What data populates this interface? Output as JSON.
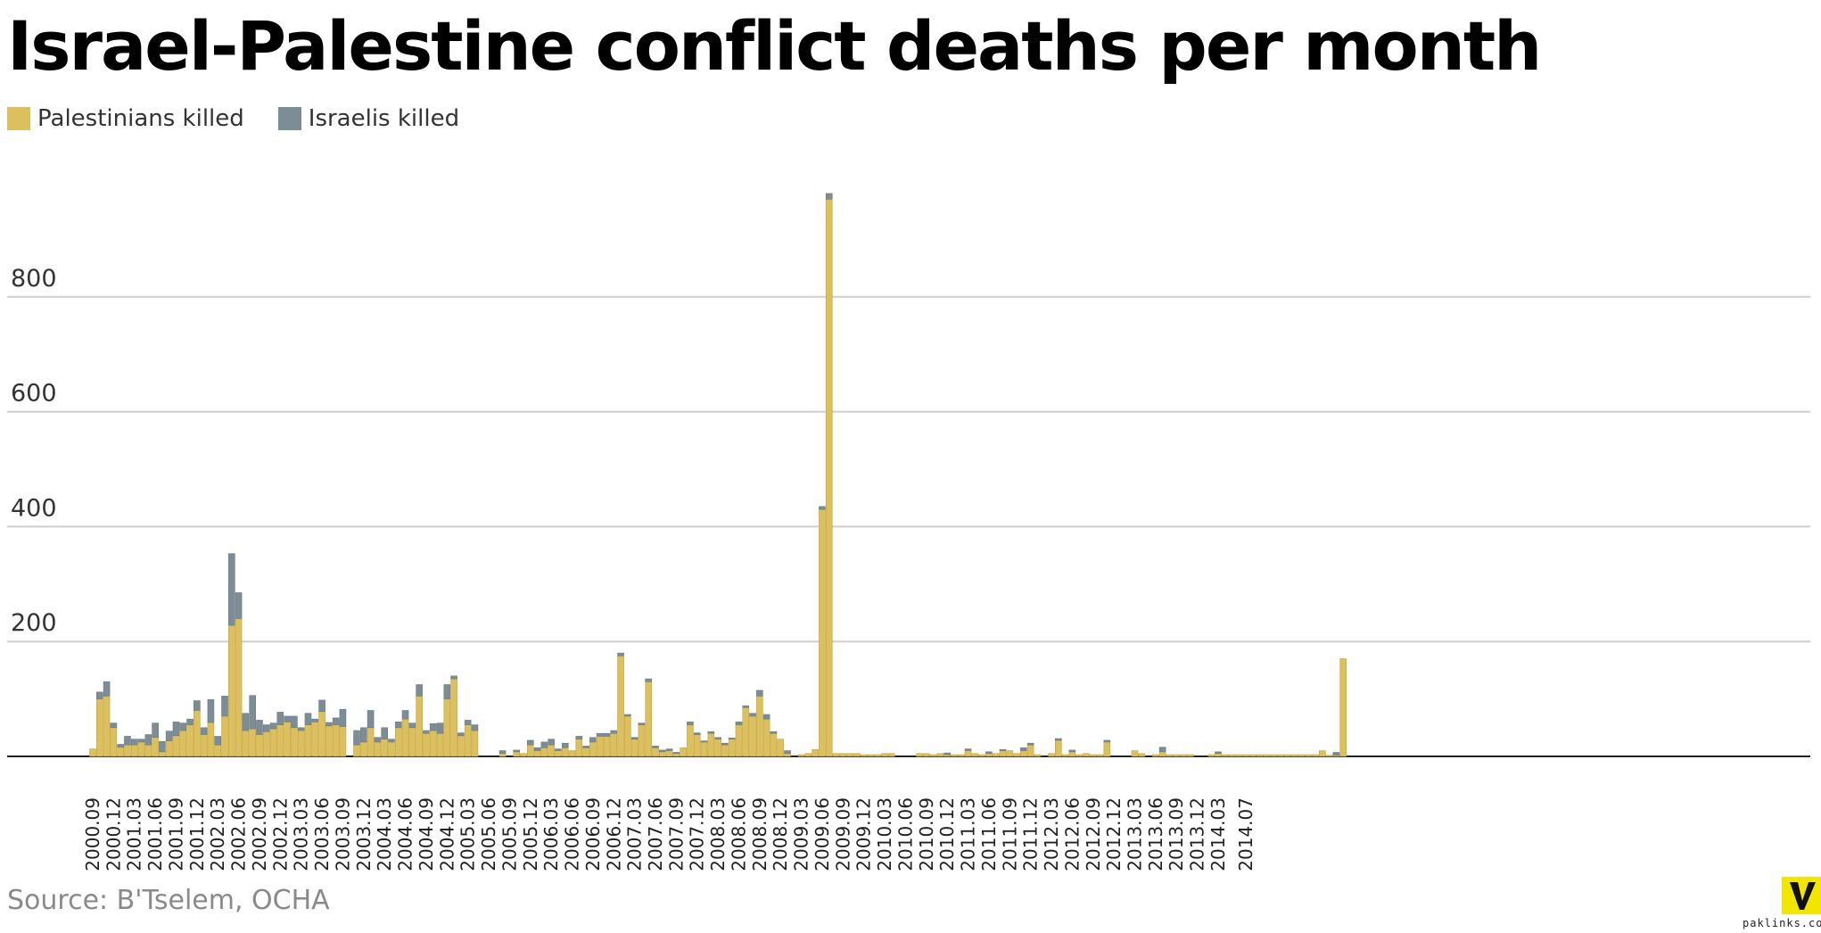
{
  "chart_data": {
    "type": "bar",
    "stacked": true,
    "title": "Israel-Palestine conflict deaths per month",
    "source": "Source: B'Tselem, OCHA",
    "xlabel": "",
    "ylabel": "",
    "ylim": [
      0,
      1000
    ],
    "yticks": [
      200,
      400,
      600,
      800
    ],
    "grid": true,
    "legend_position": "top-left",
    "x_start": "2000.09",
    "x_tick_labels": [
      "2000.09",
      "2000.12",
      "2001.03",
      "2001.06",
      "2001.09",
      "2001.12",
      "2002.03",
      "2002.06",
      "2002.09",
      "2002.12",
      "2003.03",
      "2003.06",
      "2003.09",
      "2003.12",
      "2004.03",
      "2004.06",
      "2004.09",
      "2004.12",
      "2005.03",
      "2005.06",
      "2005.09",
      "2005.12",
      "2006.03",
      "2006.06",
      "2006.09",
      "2006.12",
      "2007.03",
      "2007.06",
      "2007.09",
      "2007.12",
      "2008.03",
      "2008.06",
      "2008.09",
      "2008.12",
      "2009.03",
      "2009.06",
      "2009.09",
      "2009.12",
      "2010.03",
      "2010.06",
      "2010.09",
      "2010.12",
      "2011.03",
      "2011.06",
      "2011.09",
      "2011.12",
      "2012.03",
      "2012.06",
      "2012.09",
      "2012.12",
      "2013.03",
      "2013.06",
      "2013.09",
      "2013.12",
      "2014.03",
      "2014.07"
    ],
    "series": [
      {
        "name": "Palestinians killed",
        "color": "#dcc060",
        "values": [
          13,
          100,
          105,
          50,
          16,
          20,
          20,
          25,
          20,
          33,
          8,
          27,
          36,
          45,
          55,
          80,
          38,
          59,
          20,
          70,
          228,
          240,
          45,
          48,
          38,
          43,
          48,
          55,
          60,
          50,
          45,
          55,
          60,
          78,
          53,
          55,
          52,
          0,
          20,
          25,
          50,
          25,
          30,
          25,
          50,
          65,
          50,
          105,
          40,
          45,
          40,
          100,
          135,
          36,
          55,
          45,
          0,
          0,
          0,
          5,
          0,
          8,
          5,
          20,
          10,
          15,
          20,
          10,
          15,
          10,
          30,
          15,
          25,
          35,
          35,
          40,
          175,
          70,
          30,
          55,
          130,
          15,
          8,
          10,
          5,
          15,
          55,
          38,
          25,
          40,
          30,
          20,
          30,
          55,
          85,
          70,
          105,
          65,
          40,
          30,
          5,
          0,
          3,
          5,
          12,
          430,
          970,
          5,
          5,
          5,
          5,
          3,
          3,
          3,
          5,
          5,
          0,
          0,
          0,
          5,
          5,
          3,
          5,
          3,
          3,
          3,
          10,
          5,
          3,
          5,
          5,
          10,
          10,
          5,
          10,
          20,
          3,
          0,
          5,
          28,
          3,
          8,
          3,
          5,
          3,
          3,
          25,
          0,
          0,
          0,
          10,
          5,
          0,
          3,
          8,
          3,
          3,
          3,
          3,
          0,
          0,
          3,
          5,
          3,
          3,
          3,
          3,
          3,
          3,
          3,
          3,
          3,
          3,
          3,
          3,
          3,
          3,
          10,
          2,
          2,
          170
        ]
      },
      {
        "name": "Israelis killed",
        "color": "#7d8d95",
        "values": [
          0,
          12,
          25,
          8,
          5,
          15,
          10,
          5,
          18,
          25,
          18,
          17,
          24,
          13,
          10,
          17,
          12,
          40,
          15,
          35,
          125,
          45,
          30,
          58,
          25,
          12,
          10,
          22,
          10,
          20,
          5,
          20,
          5,
          20,
          6,
          12,
          30,
          0,
          25,
          25,
          30,
          8,
          20,
          5,
          10,
          15,
          8,
          20,
          5,
          12,
          18,
          25,
          5,
          5,
          8,
          10,
          0,
          0,
          0,
          5,
          0,
          3,
          0,
          8,
          5,
          10,
          10,
          3,
          8,
          0,
          5,
          3,
          8,
          5,
          5,
          5,
          5,
          3,
          3,
          3,
          5,
          3,
          3,
          3,
          2,
          0,
          5,
          3,
          2,
          3,
          3,
          3,
          2,
          5,
          3,
          5,
          10,
          8,
          3,
          0,
          5,
          0,
          0,
          0,
          0,
          5,
          10,
          0,
          0,
          0,
          0,
          0,
          0,
          0,
          0,
          0,
          0,
          0,
          0,
          0,
          0,
          0,
          0,
          3,
          0,
          0,
          3,
          0,
          0,
          3,
          0,
          2,
          0,
          0,
          5,
          3,
          0,
          0,
          0,
          3,
          0,
          3,
          0,
          0,
          0,
          0,
          3,
          0,
          0,
          0,
          0,
          0,
          0,
          0,
          8,
          0,
          0,
          0,
          0,
          0,
          0,
          0,
          3,
          0,
          0,
          0,
          0,
          0,
          0,
          0,
          0,
          0,
          0,
          0,
          0,
          0,
          0,
          0,
          0,
          5,
          0
        ]
      }
    ]
  }
}
